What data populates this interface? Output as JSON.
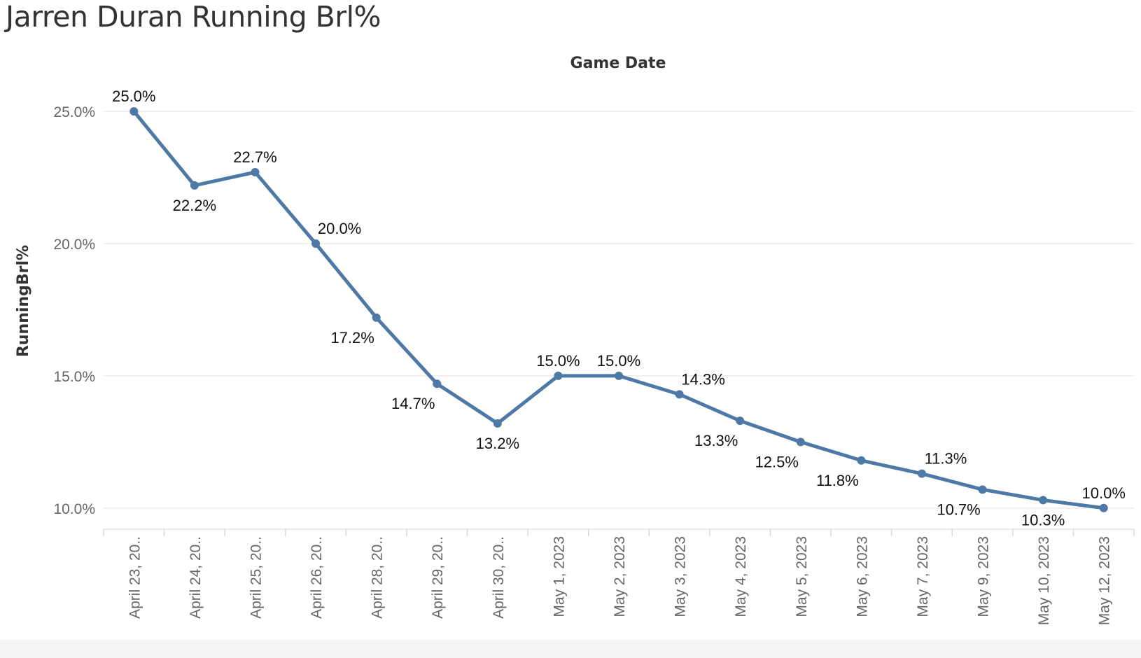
{
  "title": "Jarren Duran Running Brl%",
  "chart_data": {
    "type": "line",
    "title": "Jarren Duran Running Brl%",
    "xlabel": "Game Date",
    "ylabel": "RunningBrl%",
    "categories": [
      "April 23, 20..",
      "April 24, 20..",
      "April 25, 20..",
      "April 26, 20..",
      "April 28, 20..",
      "April 29, 20..",
      "April 30, 20..",
      "May 1, 2023",
      "May 2, 2023",
      "May 3, 2023",
      "May 4, 2023",
      "May 5, 2023",
      "May 6, 2023",
      "May 7, 2023",
      "May 9, 2023",
      "May 10, 2023",
      "May 12, 2023"
    ],
    "values": [
      25.0,
      22.2,
      22.7,
      20.0,
      17.2,
      14.7,
      13.2,
      15.0,
      15.0,
      14.3,
      13.3,
      12.5,
      11.8,
      11.3,
      10.7,
      10.3,
      10.0
    ],
    "data_labels": [
      "25.0%",
      "22.2%",
      "22.7%",
      "20.0%",
      "17.2%",
      "14.7%",
      "13.2%",
      "15.0%",
      "15.0%",
      "14.3%",
      "13.3%",
      "12.5%",
      "11.8%",
      "11.3%",
      "10.7%",
      "10.3%",
      "10.0%"
    ],
    "label_positions": [
      "above",
      "below",
      "above",
      "above-right",
      "below-left",
      "below-left",
      "below",
      "above",
      "above",
      "above-right",
      "below-left",
      "below-left",
      "below-left",
      "above-right",
      "below-left",
      "below",
      "above"
    ],
    "yticks": [
      10,
      15,
      20,
      25
    ],
    "ytick_labels": [
      "10.0%",
      "15.0%",
      "20.0%",
      "25.0%"
    ],
    "ylim": [
      9.2,
      26.3
    ],
    "grid": true,
    "legend": "none",
    "line_color": "#4e79a7"
  }
}
